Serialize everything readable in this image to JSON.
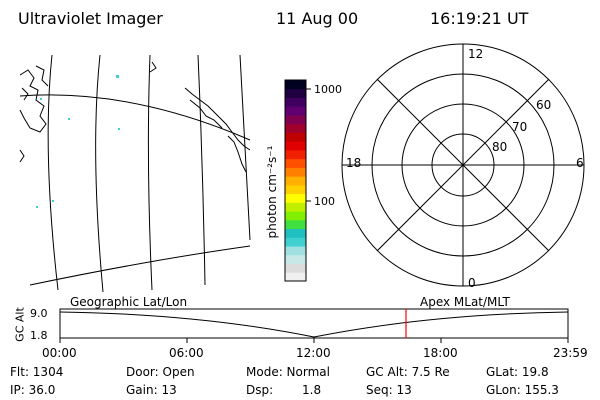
{
  "header": {
    "title": "Ultraviolet Imager",
    "date": "11 Aug 00",
    "time": "16:19:21 UT"
  },
  "colorbar": {
    "unit_label": "photon cm⁻²s⁻¹",
    "tick_labels": [
      "1000",
      "100"
    ],
    "colors": [
      "#f0f0f0",
      "#dcdcdc",
      "#c8e8e8",
      "#a0e0e0",
      "#40d0d0",
      "#20c0c0",
      "#40e040",
      "#80f000",
      "#c0f000",
      "#ffff00",
      "#ffd000",
      "#ffb000",
      "#ff8000",
      "#ff5000",
      "#f02000",
      "#e00000",
      "#c00000",
      "#a0002a",
      "#800050",
      "#600070",
      "#400060",
      "#200040",
      "#000020"
    ]
  },
  "polar_plot": {
    "clock_labels": [
      "12",
      "18",
      "6",
      "0"
    ],
    "lat_labels": [
      "60",
      "70",
      "80"
    ]
  },
  "timeline": {
    "left_label": "Geographic Lat/Lon",
    "right_label": "Apex MLat/MLT",
    "axis_label": "GC Alt",
    "y_ticks": [
      "9.0",
      "1.8"
    ],
    "x_ticks": [
      "00:00",
      "06:00",
      "12:00",
      "18:00",
      "23:59"
    ],
    "marker_color": "#ff0000"
  },
  "info": {
    "flt": "Flt: 1304",
    "ip": "IP: 36.0",
    "door": "Door: Open",
    "gain": "Gain: 13",
    "mode": "Mode: Normal",
    "dsp_label": "Dsp:",
    "dsp_value": "1.8",
    "gcalt": "GC Alt: 7.5 Re",
    "seq": "Seq: 13",
    "glat": "GLat:  19.8",
    "glon": "GLon: 155.3"
  }
}
